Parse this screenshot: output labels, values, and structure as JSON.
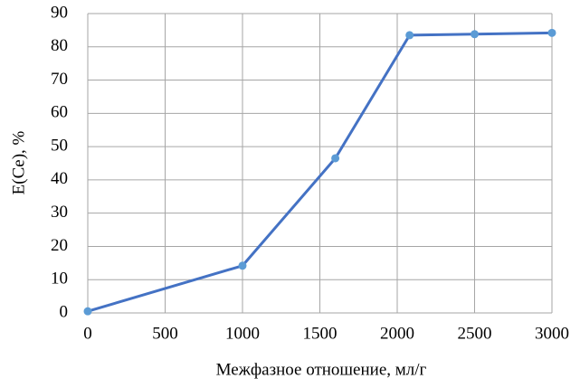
{
  "chart_data": {
    "type": "line",
    "x_label": "Межфазное отношение, мл/г",
    "y_label": "E(Ce), %",
    "x": [
      0,
      1000,
      1600,
      2080,
      2500,
      3000
    ],
    "series": [
      {
        "name": "E(Ce)",
        "color": "#4472c4",
        "marker_color": "#5b9bd5",
        "values": [
          0.5,
          14.2,
          46.5,
          83.5,
          83.8,
          84.2
        ]
      }
    ],
    "xlim": [
      0,
      3000
    ],
    "xticks": [
      0,
      500,
      1000,
      1500,
      2000,
      2500,
      3000
    ],
    "ylim": [
      0,
      90
    ],
    "yticks": [
      0,
      10,
      20,
      30,
      40,
      50,
      60,
      70,
      80,
      90
    ],
    "grid": true
  }
}
